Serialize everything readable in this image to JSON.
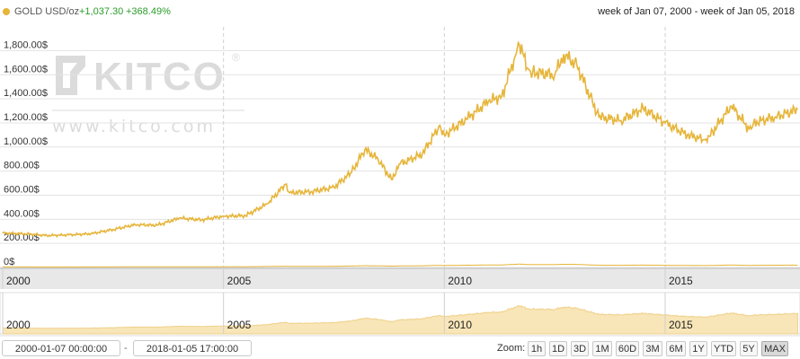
{
  "legend": {
    "series_label": "GOLD USD/oz",
    "change": "+1,037.30",
    "change_pct": "+368.49%",
    "color": "#e6b53a"
  },
  "range_text": "week of Jan 07, 2000 - week of Jan 05, 2018",
  "watermark": {
    "brand": "KITCO",
    "url": "www.kitco.com"
  },
  "chart_data": {
    "type": "line",
    "ylim": [
      0,
      1900
    ],
    "y_ticks": [
      0,
      200,
      400,
      600,
      800,
      1000,
      1200,
      1400,
      1600,
      1800
    ],
    "y_tick_labels": [
      "0$",
      "200.00$",
      "400.00$",
      "600.00$",
      "800.00$",
      "1,000.00$",
      "1,200.00$",
      "1,400.00$",
      "1,600.00$",
      "1,800.00$"
    ],
    "x_ticks": [
      "2000",
      "2005",
      "2010",
      "2015"
    ],
    "grid": true,
    "series": [
      {
        "name": "GOLD USD/oz",
        "color": "#e6b53a",
        "x": [
          2000.0,
          2000.5,
          2001.0,
          2001.5,
          2002.0,
          2002.5,
          2003.0,
          2003.5,
          2004.0,
          2004.5,
          2005.0,
          2005.5,
          2006.0,
          2006.4,
          2006.5,
          2007.0,
          2007.5,
          2007.9,
          2008.2,
          2008.5,
          2008.8,
          2009.0,
          2009.5,
          2009.9,
          2010.0,
          2010.5,
          2011.0,
          2011.3,
          2011.6,
          2011.7,
          2011.9,
          2012.0,
          2012.5,
          2012.7,
          2013.0,
          2013.3,
          2013.5,
          2014.0,
          2014.5,
          2015.0,
          2015.5,
          2015.9,
          2016.0,
          2016.5,
          2016.9,
          2017.0,
          2017.5,
          2018.0
        ],
        "y": [
          285,
          280,
          265,
          270,
          280,
          315,
          355,
          350,
          410,
          395,
          425,
          430,
          530,
          690,
          620,
          630,
          665,
          790,
          980,
          900,
          730,
          860,
          940,
          1180,
          1100,
          1230,
          1380,
          1420,
          1750,
          1850,
          1650,
          1620,
          1600,
          1770,
          1680,
          1420,
          1250,
          1220,
          1320,
          1200,
          1100,
          1060,
          1090,
          1340,
          1150,
          1200,
          1250,
          1310
        ]
      }
    ]
  },
  "navigator": {
    "x_ticks": [
      "2000",
      "2005",
      "2010",
      "2015"
    ]
  },
  "controls": {
    "start_date": "2000-01-07 00:00:00",
    "end_date": "2018-01-05 17:00:00",
    "separator": "-",
    "zoom_label": "Zoom:",
    "zoom_buttons": [
      "1h",
      "1D",
      "3D",
      "1M",
      "60D",
      "3M",
      "6M",
      "1Y",
      "YTD",
      "5Y",
      "MAX"
    ],
    "active_zoom": "MAX"
  }
}
